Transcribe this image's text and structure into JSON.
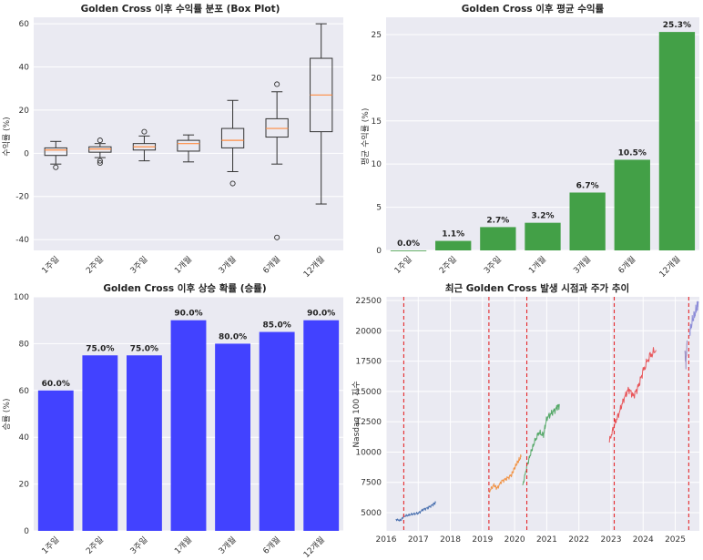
{
  "chart_data": [
    {
      "id": "boxplot",
      "type": "box",
      "title": "Golden Cross 이후 수익률 분포 (Box Plot)",
      "ylabel": "수익률 (%)",
      "categories": [
        "1주일",
        "2주일",
        "3주일",
        "1개월",
        "3개월",
        "6개월",
        "12개월"
      ],
      "ylim": [
        -45,
        63
      ],
      "yticks": [
        -40,
        -20,
        0,
        20,
        40,
        60
      ],
      "boxes": [
        {
          "min": -5,
          "q1": -1,
          "median": 1.5,
          "q3": 2.5,
          "max": 5.5,
          "outliers": [
            -6.5
          ]
        },
        {
          "min": -2,
          "q1": 0.5,
          "median": 2,
          "q3": 3,
          "max": 4.5,
          "outliers": [
            6,
            -3.5,
            -4.5
          ]
        },
        {
          "min": -3.5,
          "q1": 1.5,
          "median": 3,
          "q3": 4.5,
          "max": 8,
          "outliers": [
            10
          ]
        },
        {
          "min": -4,
          "q1": 1,
          "median": 4.5,
          "q3": 6,
          "max": 8.5,
          "outliers": []
        },
        {
          "min": -8.5,
          "q1": 2.5,
          "median": 6,
          "q3": 11.5,
          "max": 24.5,
          "outliers": [
            -14
          ]
        },
        {
          "min": -5,
          "q1": 7.5,
          "median": 11.5,
          "q3": 16,
          "max": 28.5,
          "outliers": [
            32,
            -39
          ]
        },
        {
          "min": -23.5,
          "q1": 10,
          "median": 27,
          "q3": 44,
          "max": 60,
          "outliers": []
        }
      ]
    },
    {
      "id": "avgbar",
      "type": "bar",
      "title": "Golden Cross 이후 평균 수익률",
      "ylabel": "평균 수익률 (%)",
      "categories": [
        "1주일",
        "2주일",
        "3주일",
        "1개월",
        "3개월",
        "6개월",
        "12개월"
      ],
      "values": [
        0.0,
        1.1,
        2.7,
        3.2,
        6.7,
        10.5,
        25.3
      ],
      "labels": [
        "0.0%",
        "1.1%",
        "2.7%",
        "3.2%",
        "6.7%",
        "10.5%",
        "25.3%"
      ],
      "ylim": [
        0,
        27
      ],
      "yticks": [
        0,
        5,
        10,
        15,
        20,
        25
      ],
      "color": "#43a047"
    },
    {
      "id": "winbar",
      "type": "bar",
      "title": "Golden Cross 이후 상승 확률 (승률)",
      "ylabel": "승률 (%)",
      "categories": [
        "1주일",
        "2주일",
        "3주일",
        "1개월",
        "3개월",
        "6개월",
        "12개월"
      ],
      "values": [
        60.0,
        75.0,
        75.0,
        90.0,
        80.0,
        85.0,
        90.0
      ],
      "labels": [
        "60.0%",
        "75.0%",
        "75.0%",
        "90.0%",
        "80.0%",
        "85.0%",
        "90.0%"
      ],
      "ylim": [
        0,
        100
      ],
      "yticks": [
        0,
        20,
        40,
        60,
        80,
        100
      ],
      "color": "#4242ff"
    },
    {
      "id": "timeseries",
      "type": "line",
      "title": "최근 Golden Cross 발생 시점과 주가 추이",
      "ylabel": "Nasdaq 100 지수",
      "xlim": [
        2016.0,
        2025.75
      ],
      "ylim": [
        3500,
        22800
      ],
      "xticks": [
        2016,
        2017,
        2018,
        2019,
        2020,
        2021,
        2022,
        2023,
        2024,
        2025
      ],
      "yticks": [
        5000,
        7500,
        10000,
        12500,
        15000,
        17500,
        20000,
        22500
      ],
      "golden_cross_dates": [
        2016.55,
        2019.2,
        2020.38,
        2023.1,
        2025.42
      ],
      "series": [
        {
          "name": "2016.5",
          "color": "#4c72b0",
          "x": [
            2016.3,
            2016.45,
            2016.55,
            2016.7,
            2016.85,
            2017.0,
            2017.15,
            2017.3,
            2017.45,
            2017.55
          ],
          "y": [
            4450,
            4350,
            4700,
            4800,
            4900,
            4950,
            5250,
            5400,
            5650,
            5850
          ]
        },
        {
          "name": "2019.2",
          "color": "#f0954a",
          "x": [
            2019.2,
            2019.35,
            2019.45,
            2019.6,
            2019.75,
            2019.9,
            2020.0,
            2020.1,
            2020.2
          ],
          "y": [
            6700,
            7300,
            7000,
            7600,
            7800,
            8100,
            8700,
            9200,
            9600
          ]
        },
        {
          "name": "2020.4",
          "color": "#55a868",
          "x": [
            2020.25,
            2020.38,
            2020.5,
            2020.6,
            2020.75,
            2020.9,
            2021.0,
            2021.15,
            2021.3,
            2021.4
          ],
          "y": [
            7200,
            8800,
            9900,
            10700,
            11600,
            11400,
            12800,
            13200,
            13600,
            13900
          ]
        },
        {
          "name": "2023.1",
          "color": "#e8565a",
          "x": [
            2022.95,
            2023.1,
            2023.25,
            2023.4,
            2023.55,
            2023.7,
            2023.85,
            2024.0,
            2024.2,
            2024.4
          ],
          "y": [
            10900,
            12200,
            13200,
            14400,
            15200,
            14600,
            15400,
            16700,
            17900,
            18400
          ]
        },
        {
          "name": "2025.4",
          "color": "#9b8ec4",
          "x": [
            2025.3,
            2025.33,
            2025.37
          ],
          "y": [
            18300,
            17300,
            19200
          ]
        },
        {
          "name": "2025.5",
          "color": "#8c8cd8",
          "x": [
            2025.45,
            2025.55,
            2025.65,
            2025.72
          ],
          "y": [
            19900,
            21000,
            21700,
            22300
          ]
        }
      ]
    }
  ]
}
